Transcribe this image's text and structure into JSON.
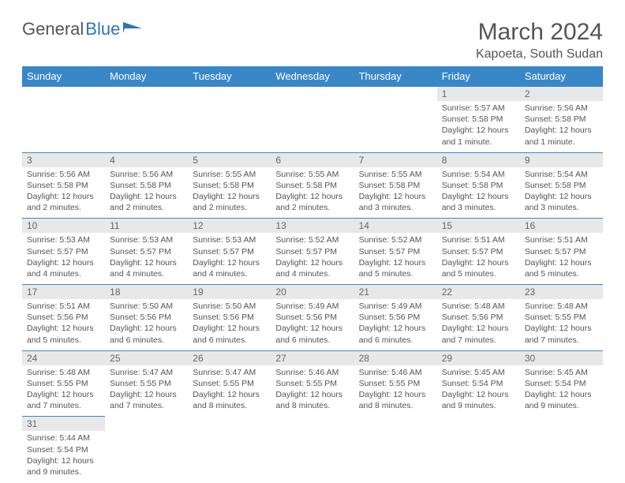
{
  "logo": {
    "text1": "General",
    "text2": "Blue"
  },
  "title": "March 2024",
  "location": "Kapoeta, South Sudan",
  "weekdays": [
    "Sunday",
    "Monday",
    "Tuesday",
    "Wednesday",
    "Thursday",
    "Friday",
    "Saturday"
  ],
  "colors": {
    "header_bg": "#3a87c8",
    "header_text": "#ffffff",
    "daynum_bg": "#e8e8e8",
    "row_border": "#3a87c8",
    "text": "#555555",
    "logo_blue": "#2a75bb"
  },
  "first_weekday": 5,
  "days_in_month": 31,
  "days": {
    "1": {
      "sunrise": "5:57 AM",
      "sunset": "5:58 PM",
      "daylight": "12 hours and 1 minute."
    },
    "2": {
      "sunrise": "5:56 AM",
      "sunset": "5:58 PM",
      "daylight": "12 hours and 1 minute."
    },
    "3": {
      "sunrise": "5:56 AM",
      "sunset": "5:58 PM",
      "daylight": "12 hours and 2 minutes."
    },
    "4": {
      "sunrise": "5:56 AM",
      "sunset": "5:58 PM",
      "daylight": "12 hours and 2 minutes."
    },
    "5": {
      "sunrise": "5:55 AM",
      "sunset": "5:58 PM",
      "daylight": "12 hours and 2 minutes."
    },
    "6": {
      "sunrise": "5:55 AM",
      "sunset": "5:58 PM",
      "daylight": "12 hours and 2 minutes."
    },
    "7": {
      "sunrise": "5:55 AM",
      "sunset": "5:58 PM",
      "daylight": "12 hours and 3 minutes."
    },
    "8": {
      "sunrise": "5:54 AM",
      "sunset": "5:58 PM",
      "daylight": "12 hours and 3 minutes."
    },
    "9": {
      "sunrise": "5:54 AM",
      "sunset": "5:58 PM",
      "daylight": "12 hours and 3 minutes."
    },
    "10": {
      "sunrise": "5:53 AM",
      "sunset": "5:57 PM",
      "daylight": "12 hours and 4 minutes."
    },
    "11": {
      "sunrise": "5:53 AM",
      "sunset": "5:57 PM",
      "daylight": "12 hours and 4 minutes."
    },
    "12": {
      "sunrise": "5:53 AM",
      "sunset": "5:57 PM",
      "daylight": "12 hours and 4 minutes."
    },
    "13": {
      "sunrise": "5:52 AM",
      "sunset": "5:57 PM",
      "daylight": "12 hours and 4 minutes."
    },
    "14": {
      "sunrise": "5:52 AM",
      "sunset": "5:57 PM",
      "daylight": "12 hours and 5 minutes."
    },
    "15": {
      "sunrise": "5:51 AM",
      "sunset": "5:57 PM",
      "daylight": "12 hours and 5 minutes."
    },
    "16": {
      "sunrise": "5:51 AM",
      "sunset": "5:57 PM",
      "daylight": "12 hours and 5 minutes."
    },
    "17": {
      "sunrise": "5:51 AM",
      "sunset": "5:56 PM",
      "daylight": "12 hours and 5 minutes."
    },
    "18": {
      "sunrise": "5:50 AM",
      "sunset": "5:56 PM",
      "daylight": "12 hours and 6 minutes."
    },
    "19": {
      "sunrise": "5:50 AM",
      "sunset": "5:56 PM",
      "daylight": "12 hours and 6 minutes."
    },
    "20": {
      "sunrise": "5:49 AM",
      "sunset": "5:56 PM",
      "daylight": "12 hours and 6 minutes."
    },
    "21": {
      "sunrise": "5:49 AM",
      "sunset": "5:56 PM",
      "daylight": "12 hours and 6 minutes."
    },
    "22": {
      "sunrise": "5:48 AM",
      "sunset": "5:56 PM",
      "daylight": "12 hours and 7 minutes."
    },
    "23": {
      "sunrise": "5:48 AM",
      "sunset": "5:55 PM",
      "daylight": "12 hours and 7 minutes."
    },
    "24": {
      "sunrise": "5:48 AM",
      "sunset": "5:55 PM",
      "daylight": "12 hours and 7 minutes."
    },
    "25": {
      "sunrise": "5:47 AM",
      "sunset": "5:55 PM",
      "daylight": "12 hours and 7 minutes."
    },
    "26": {
      "sunrise": "5:47 AM",
      "sunset": "5:55 PM",
      "daylight": "12 hours and 8 minutes."
    },
    "27": {
      "sunrise": "5:46 AM",
      "sunset": "5:55 PM",
      "daylight": "12 hours and 8 minutes."
    },
    "28": {
      "sunrise": "5:46 AM",
      "sunset": "5:55 PM",
      "daylight": "12 hours and 8 minutes."
    },
    "29": {
      "sunrise": "5:45 AM",
      "sunset": "5:54 PM",
      "daylight": "12 hours and 9 minutes."
    },
    "30": {
      "sunrise": "5:45 AM",
      "sunset": "5:54 PM",
      "daylight": "12 hours and 9 minutes."
    },
    "31": {
      "sunrise": "5:44 AM",
      "sunset": "5:54 PM",
      "daylight": "12 hours and 9 minutes."
    }
  },
  "labels": {
    "sunrise": "Sunrise:",
    "sunset": "Sunset:",
    "daylight": "Daylight:"
  }
}
